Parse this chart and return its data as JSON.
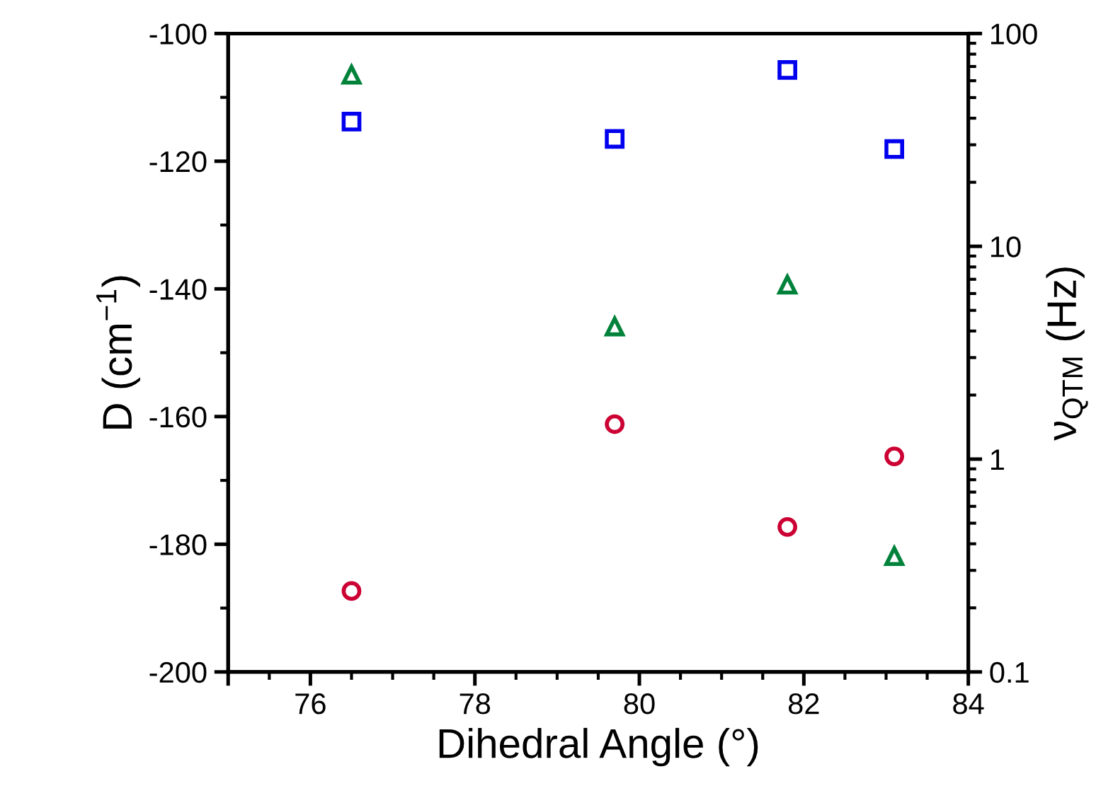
{
  "chart_data": {
    "type": "scatter",
    "xlabel": "Dihedral Angle (°)",
    "ylabel": "D (cm$^{−1}$)",
    "y2label": "ν$_{QTM}$ (Hz)",
    "x": [
      76.5,
      79.7,
      81.8,
      83.1
    ],
    "xlim": [
      75,
      84
    ],
    "xticks": [
      {
        "value": 75,
        "label": null
      },
      76,
      78,
      80,
      82,
      84
    ],
    "ylim": [
      -200,
      -100
    ],
    "yticks": [
      -200,
      -180,
      -160,
      -140,
      -120,
      -100
    ],
    "y2lim": [
      0.1,
      100
    ],
    "y2ticks": [
      0.1,
      1,
      10,
      100
    ],
    "log": "y2",
    "grid": false,
    "legend": false,
    "series": [
      {
        "color": "#0000ee",
        "marker": "square",
        "values": [
          -113.8,
          -116.5,
          -105.7,
          -118.1
        ]
      },
      {
        "color": "#00823b",
        "marker": "triangle",
        "axis": "y2",
        "values": [
          64,
          4.2,
          6.6,
          0.35
        ]
      },
      {
        "color": "#cc0033",
        "marker": "circle",
        "axis": "y2",
        "values": [
          0.24,
          1.46,
          0.48,
          1.03
        ]
      }
    ]
  }
}
